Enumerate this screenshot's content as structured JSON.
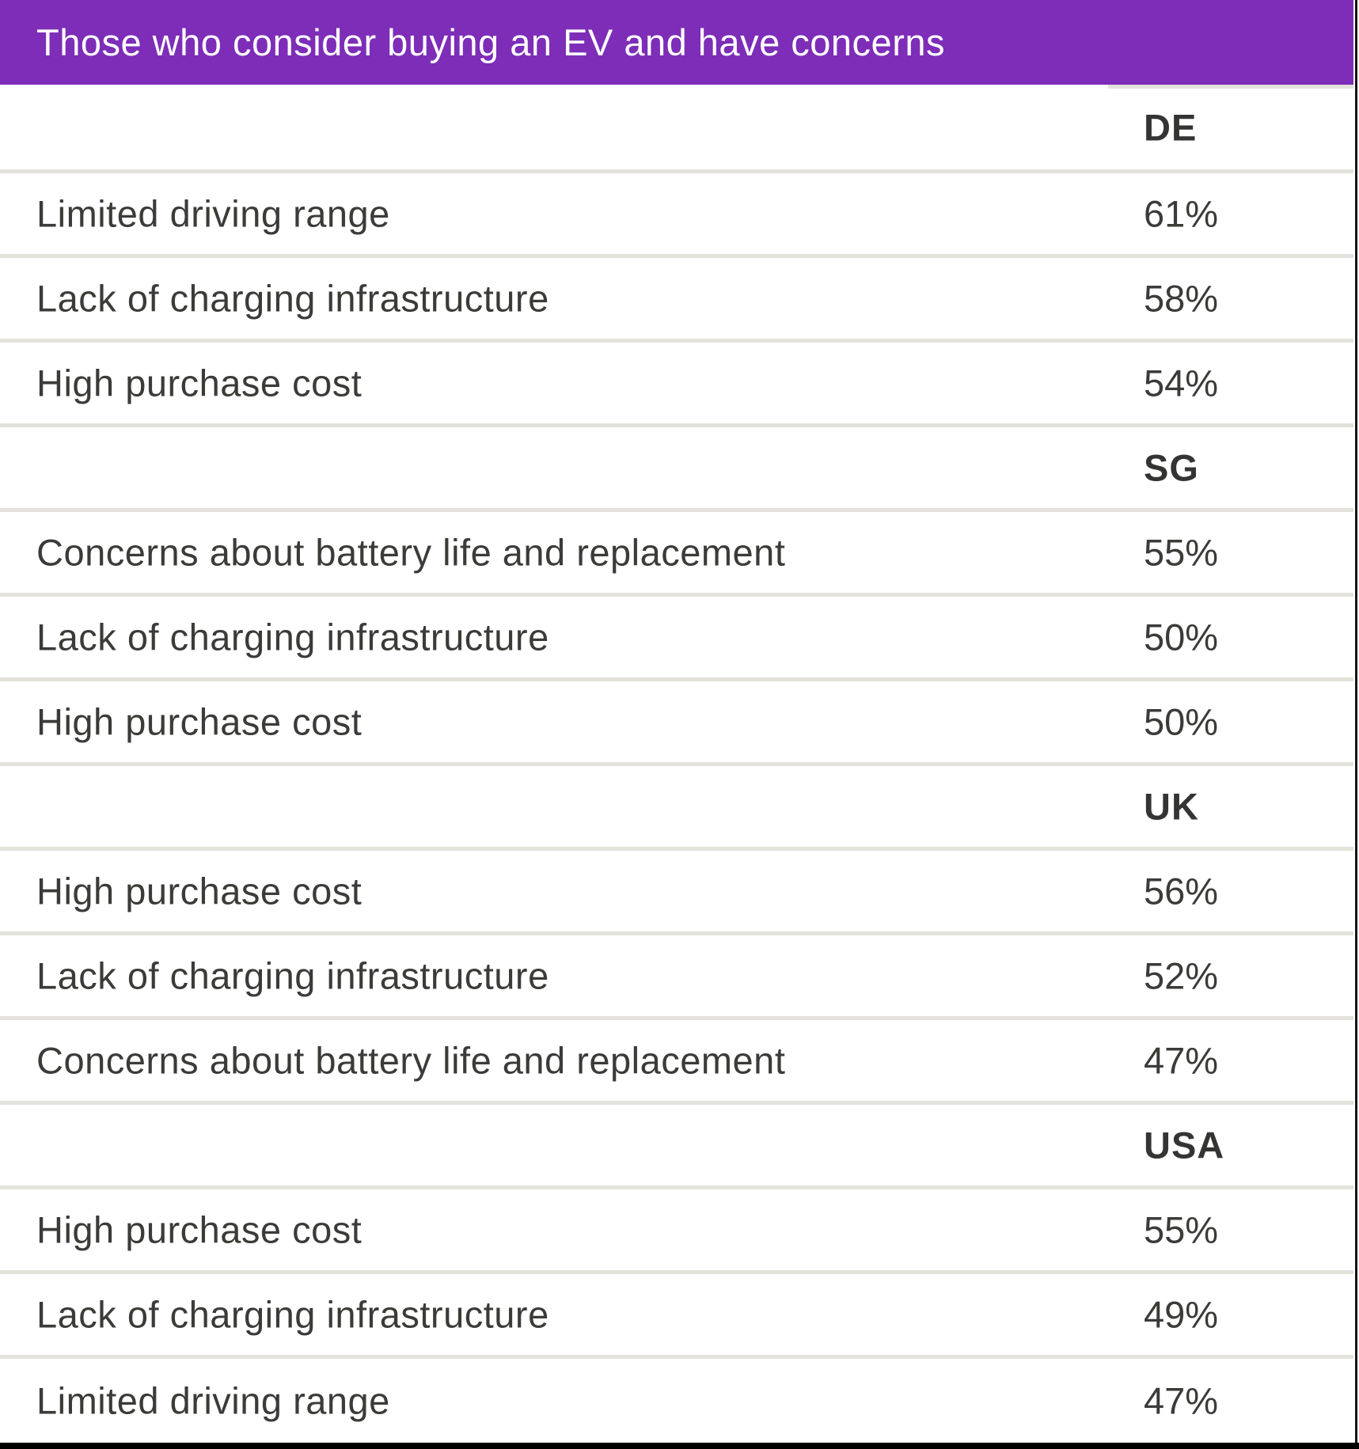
{
  "header": {
    "title": "Those who consider buying an EV and have concerns"
  },
  "chart_data": {
    "type": "table",
    "title": "Those who consider buying an EV and have concerns",
    "value_format": "percent",
    "layout": "grouped rows by country; concern label left column, percentage right column",
    "sections": [
      {
        "country": "DE",
        "rows": [
          {
            "label": "Limited driving range",
            "value": "61%",
            "value_num": 61
          },
          {
            "label": "Lack of charging infrastructure",
            "value": "58%",
            "value_num": 58
          },
          {
            "label": "High purchase cost",
            "value": "54%",
            "value_num": 54
          }
        ]
      },
      {
        "country": "SG",
        "rows": [
          {
            "label": "Concerns about battery life and replacement",
            "value": "55%",
            "value_num": 55
          },
          {
            "label": "Lack of charging infrastructure",
            "value": "50%",
            "value_num": 50
          },
          {
            "label": "High purchase cost",
            "value": "50%",
            "value_num": 50
          }
        ]
      },
      {
        "country": "UK",
        "rows": [
          {
            "label": "High purchase cost",
            "value": "56%",
            "value_num": 56
          },
          {
            "label": "Lack of charging infrastructure",
            "value": "52%",
            "value_num": 52
          },
          {
            "label": "Concerns about battery life and replacement",
            "value": "47%",
            "value_num": 47
          }
        ]
      },
      {
        "country": "USA",
        "rows": [
          {
            "label": "High purchase cost",
            "value": "55%",
            "value_num": 55
          },
          {
            "label": "Lack of charging infrastructure",
            "value": "49%",
            "value_num": 49
          },
          {
            "label": "Limited driving range",
            "value": "47%",
            "value_num": 47
          }
        ]
      }
    ]
  },
  "colors": {
    "accent_purple": "#7d2db8",
    "title_text": "#ffffff",
    "text": "#3b3b38",
    "separator": "#e3e2db",
    "bottom_bar": "#000000",
    "right_edge": "#161616"
  }
}
